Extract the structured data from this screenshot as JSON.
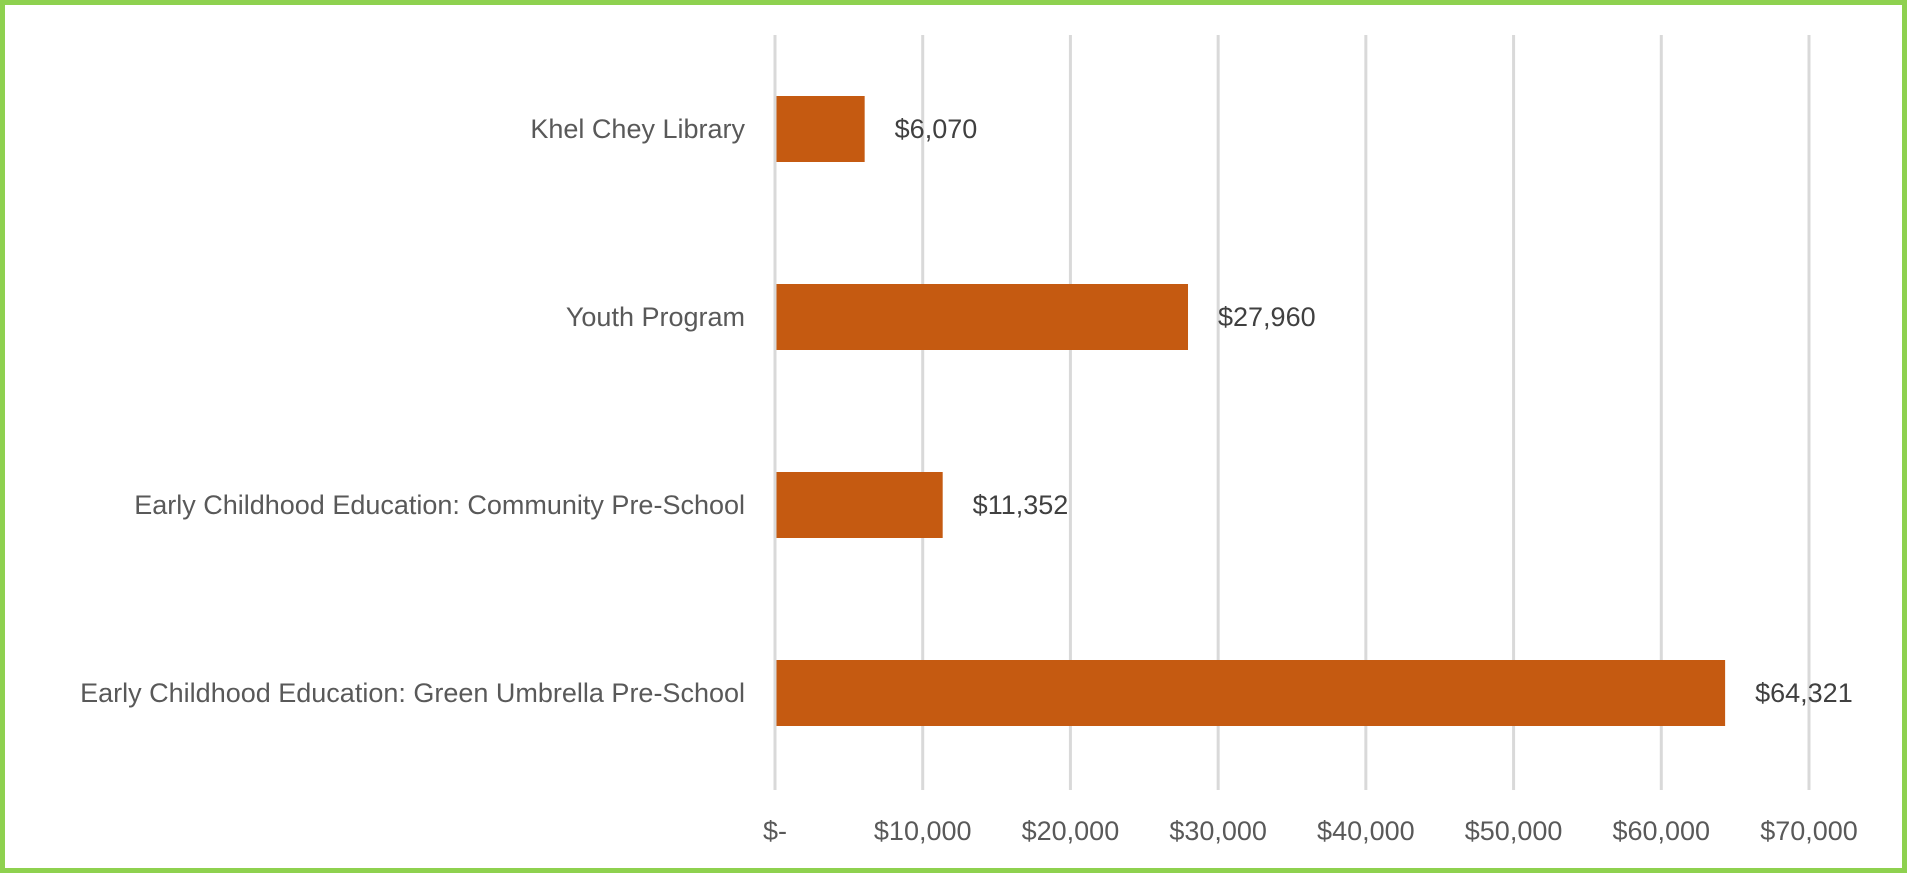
{
  "chart_data": {
    "type": "bar",
    "orientation": "horizontal",
    "title": "",
    "xlabel": "",
    "ylabel": "",
    "categories": [
      "Khel Chey Library",
      "Youth Program",
      "Early Childhood Education: Community Pre-School",
      "Early Childhood Education: Green Umbrella Pre-School"
    ],
    "values": [
      6070,
      27960,
      11352,
      64321
    ],
    "data_labels": [
      "$6,070",
      "$27,960",
      "$11,352",
      "$64,321"
    ],
    "xlim": [
      0,
      70000
    ],
    "ticks": [
      0,
      10000,
      20000,
      30000,
      40000,
      50000,
      60000,
      70000
    ],
    "tick_labels": [
      "$-",
      "$10,000",
      "$20,000",
      "$30,000",
      "$40,000",
      "$50,000",
      "$60,000",
      "$70,000"
    ],
    "grid": true,
    "legend": "none",
    "colors": {
      "bar": "#c55a11",
      "frame_border": "#8ed14f",
      "gridline": "#d9d9d9",
      "axis_text": "#595959",
      "data_label_text": "#404040"
    }
  }
}
